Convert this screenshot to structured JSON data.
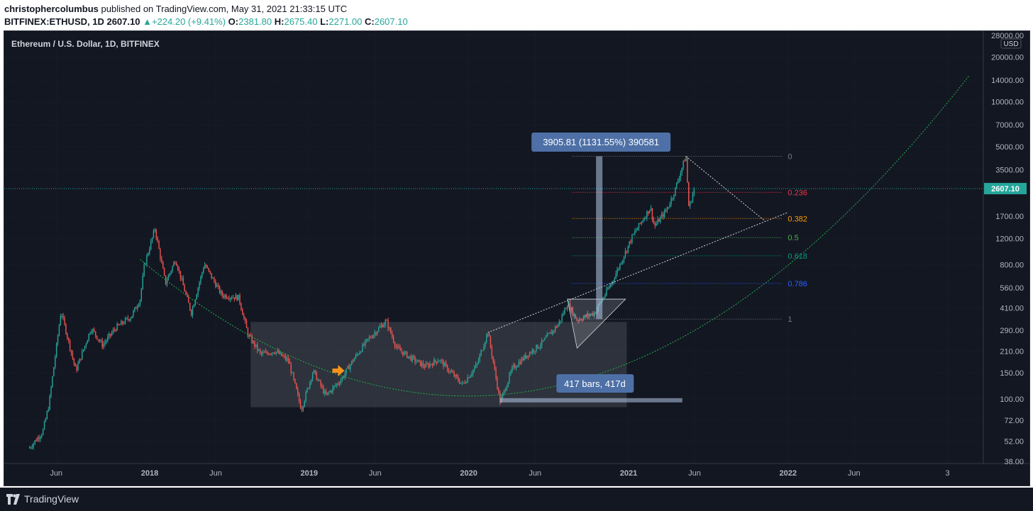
{
  "header": {
    "author": "christophercolumbus",
    "published": "published on TradingView.com, May 31, 2021 21:33:15 UTC",
    "symbol": "BITFINEX:ETHUSD, 1D",
    "close": "2607.10",
    "change_arrow": "▲",
    "change": "+224.20 (+9.41%)",
    "o_label": "O:",
    "o_value": "2381.80",
    "h_label": "H:",
    "h_value": "2675.40",
    "l_label": "L:",
    "l_value": "2271.00",
    "c_label": "C:",
    "c_value": "2607.10"
  },
  "footer": {
    "logo_text": "TradingView"
  },
  "colors": {
    "background": "#131722",
    "up": "#26a69a",
    "down": "#ef5350",
    "grid": "#1e222d",
    "text": "#b2b5be",
    "curve": "#22b14c",
    "white_line": "#d1d4dc"
  },
  "chart_data": {
    "type": "candlestick",
    "title": "Ethereum / U.S. Dollar, 1D, BITFINEX",
    "y_scale": "log",
    "y_unit": "USD",
    "last_price": "2607.10",
    "y_ticks": [
      "28000.00",
      "20000.00",
      "14000.00",
      "10000.00",
      "7000.00",
      "5000.00",
      "3500.00",
      "1700.00",
      "1200.00",
      "800.00",
      "560.00",
      "410.00",
      "290.00",
      "210.00",
      "150.00",
      "100.00",
      "72.00",
      "52.00",
      "38.00"
    ],
    "x_ticks": [
      "Jun",
      "2018",
      "Jun",
      "2019",
      "Jun",
      "2020",
      "Jun",
      "2021",
      "Jun",
      "2022",
      "Jun",
      "3"
    ],
    "fib_levels": [
      {
        "label": "0",
        "price": 4300,
        "color": "#787b86"
      },
      {
        "label": "0.236",
        "price": 2460,
        "color": "#f23645"
      },
      {
        "label": "0.382",
        "price": 1640,
        "color": "#ff9800"
      },
      {
        "label": "0.5",
        "price": 1220,
        "color": "#4caf50"
      },
      {
        "label": "0.618",
        "price": 920,
        "color": "#089981"
      },
      {
        "label": "0.786",
        "price": 600,
        "color": "#2962ff"
      },
      {
        "label": "1",
        "price": 345,
        "color": "#787b86"
      }
    ],
    "price_range_label": "3905.81 (1131.55%) 390581",
    "date_range_label": "417 bars, 417d",
    "price_path": [
      [
        "2017-04-01",
        47
      ],
      [
        "2017-05-01",
        60
      ],
      [
        "2017-05-15",
        90
      ],
      [
        "2017-06-12",
        390
      ],
      [
        "2017-07-16",
        155
      ],
      [
        "2017-08-20",
        300
      ],
      [
        "2017-09-15",
        230
      ],
      [
        "2017-10-15",
        300
      ],
      [
        "2017-11-20",
        360
      ],
      [
        "2017-12-10",
        470
      ],
      [
        "2017-12-20",
        800
      ],
      [
        "2018-01-13",
        1400
      ],
      [
        "2018-02-06",
        600
      ],
      [
        "2018-03-01",
        870
      ],
      [
        "2018-04-06",
        380
      ],
      [
        "2018-05-06",
        810
      ],
      [
        "2018-06-15",
        500
      ],
      [
        "2018-07-24",
        480
      ],
      [
        "2018-08-14",
        270
      ],
      [
        "2018-09-12",
        200
      ],
      [
        "2018-10-15",
        210
      ],
      [
        "2018-11-15",
        180
      ],
      [
        "2018-12-14",
        85
      ],
      [
        "2019-01-10",
        155
      ],
      [
        "2019-02-08",
        105
      ],
      [
        "2019-03-15",
        135
      ],
      [
        "2019-04-10",
        180
      ],
      [
        "2019-05-15",
        250
      ],
      [
        "2019-06-26",
        335
      ],
      [
        "2019-07-20",
        220
      ],
      [
        "2019-08-20",
        190
      ],
      [
        "2019-09-24",
        165
      ],
      [
        "2019-10-25",
        185
      ],
      [
        "2019-11-22",
        150
      ],
      [
        "2019-12-18",
        125
      ],
      [
        "2020-01-20",
        170
      ],
      [
        "2020-02-14",
        285
      ],
      [
        "2020-03-13",
        95
      ],
      [
        "2020-04-10",
        160
      ],
      [
        "2020-05-15",
        200
      ],
      [
        "2020-06-15",
        235
      ],
      [
        "2020-07-25",
        320
      ],
      [
        "2020-08-14",
        440
      ],
      [
        "2020-09-05",
        340
      ],
      [
        "2020-10-15",
        380
      ],
      [
        "2020-11-24",
        610
      ],
      [
        "2021-01-10",
        1250
      ],
      [
        "2021-02-20",
        1950
      ],
      [
        "2021-03-01",
        1450
      ],
      [
        "2021-03-30",
        1900
      ],
      [
        "2021-04-15",
        2450
      ],
      [
        "2021-05-12",
        4350
      ],
      [
        "2021-05-19",
        1900
      ],
      [
        "2021-05-31",
        2607
      ]
    ],
    "trendlines": [
      {
        "name": "parabolic-curve",
        "style": "dotted",
        "color": "#22b14c"
      },
      {
        "name": "rising-trendline",
        "style": "dotted",
        "color": "#d1d4dc",
        "from": [
          "2020-02-14",
          280
        ],
        "to": [
          "2021-12-31",
          1800
        ]
      },
      {
        "name": "falling-trendline",
        "style": "dotted",
        "color": "#d1d4dc",
        "from": [
          "2021-05-12",
          4300
        ],
        "to": [
          "2021-11-10",
          1570
        ]
      }
    ],
    "range_box": {
      "from": "2018-08-20",
      "to": "2020-12-28",
      "high": 330,
      "low": 88
    },
    "grid": true,
    "legend": "none"
  }
}
